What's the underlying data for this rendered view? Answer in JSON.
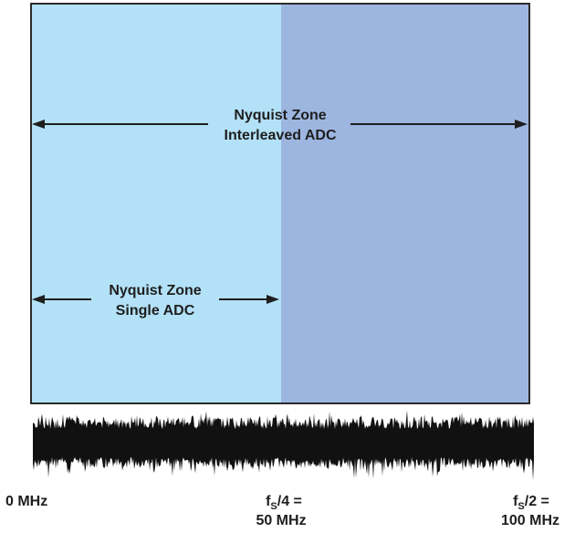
{
  "colors": {
    "single_zone_fill": "#b3e1f7",
    "interleaved_zone_fill": "#9db6e0",
    "border": "#2b2b2b",
    "arrow": "#1e1e1e",
    "noise": "#111111",
    "text": "#1e1e1e"
  },
  "interleaved_zone": {
    "line1": "Nyquist Zone",
    "line2": "Interleaved ADC"
  },
  "single_zone": {
    "line1": "Nyquist Zone",
    "line2": "Single ADC"
  },
  "axis": {
    "left": {
      "line1": "0 MHz"
    },
    "mid": {
      "symbol": "f",
      "subscript": "S",
      "suffix": "/4 =",
      "line2": "50 MHz"
    },
    "right": {
      "symbol": "f",
      "subscript": "S",
      "suffix": "/2 =",
      "line2": "100 MHz"
    }
  }
}
